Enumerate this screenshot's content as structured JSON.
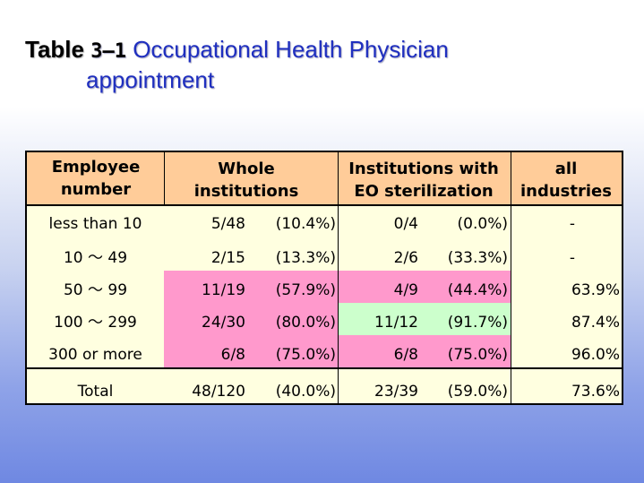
{
  "title": {
    "label": "Table",
    "number": "3–1",
    "line1": "Occupational Health Physician",
    "line2": "appointment"
  },
  "table": {
    "headers": {
      "employee": [
        "Employee",
        "number"
      ],
      "whole": [
        "Whole",
        "institutions"
      ],
      "eo": [
        "Institutions with",
        "EO sterilization"
      ],
      "all": [
        "all",
        "industries"
      ]
    },
    "rows": [
      {
        "label": "less than 10",
        "whole_ratio": "5/48",
        "whole_pct": "(10.4%)",
        "eo_ratio": "0/4",
        "eo_pct": "(0.0%)",
        "all": "-"
      },
      {
        "label": "10 〜 49",
        "whole_ratio": "2/15",
        "whole_pct": "(13.3%)",
        "eo_ratio": "2/6",
        "eo_pct": "(33.3%)",
        "all": "-"
      },
      {
        "label": "50 〜 99",
        "whole_ratio": "11/19",
        "whole_pct": "(57.9%)",
        "eo_ratio": "4/9",
        "eo_pct": "(44.4%)",
        "all": "63.9%"
      },
      {
        "label": "100 〜 299",
        "whole_ratio": "24/30",
        "whole_pct": "(80.0%)",
        "eo_ratio": "11/12",
        "eo_pct": "(91.7%)",
        "all": "87.4%"
      },
      {
        "label": "300 or more",
        "whole_ratio": "6/8",
        "whole_pct": "(75.0%)",
        "eo_ratio": "6/8",
        "eo_pct": "(75.0%)",
        "all": "96.0%"
      }
    ],
    "total": {
      "label": "Total",
      "whole_ratio": "48/120",
      "whole_pct": "(40.0%)",
      "eo_ratio": "23/39",
      "eo_pct": "(59.0%)",
      "all": "73.6%"
    },
    "colors": {
      "header": "#ffcc99",
      "body": "#ffffe0",
      "highlight_pink": "#ff99cc",
      "highlight_green": "#ccffcc"
    }
  }
}
